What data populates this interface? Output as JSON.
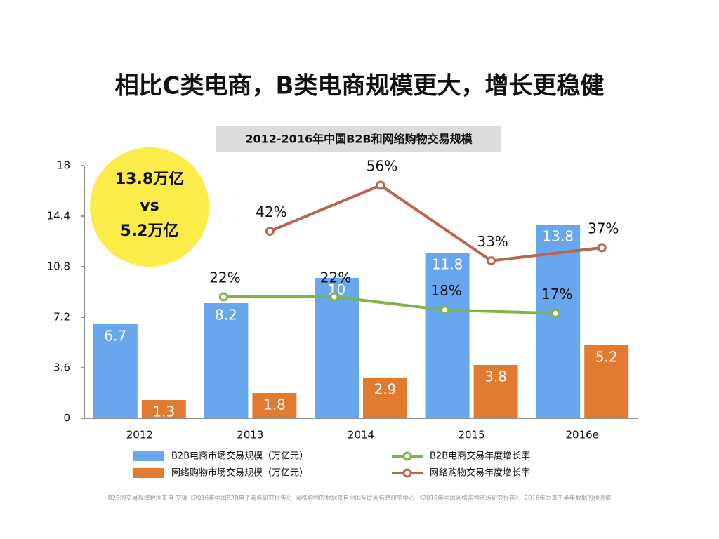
{
  "page_title": "相比C类电商，B类电商规模更大，增长更稳健",
  "callout": [
    "13.8万亿",
    "vs",
    "5.2万亿"
  ],
  "source_note": "B2B的交易规模数据来自 艾瑞《2016年中国B2B电子商务研究报告》；网络购物的数据来自中国互联网信息研究中心 《2015年中国网络购物市场研究报告》；2016年为基于半年数据的预测值",
  "chart_data": {
    "type": "combo",
    "title": "2012-2016年中国B2B和网络购物交易规模",
    "categories": [
      "2012",
      "2013",
      "2014",
      "2015",
      "2016e"
    ],
    "ylim": [
      0,
      18
    ],
    "yticks": [
      0,
      3.6,
      7.2,
      10.8,
      14.4,
      18
    ],
    "y2lim": [
      -15,
      62
    ],
    "grid": false,
    "series": [
      {
        "name": "B2B电商市场交易规模（万亿元）",
        "type": "bar",
        "color": "#68a7ee",
        "values": [
          6.7,
          8.2,
          10,
          11.8,
          13.8
        ]
      },
      {
        "name": "网络购物市场交易规模（万亿元）",
        "type": "bar",
        "color": "#e27a2f",
        "values": [
          1.3,
          1.8,
          2.9,
          3.8,
          5.2
        ]
      },
      {
        "name": "B2B电商交易年度增长率",
        "type": "line",
        "axis": "y2",
        "color": "#7cb644",
        "values": [
          null,
          22,
          22,
          18,
          17
        ],
        "value_labels": [
          null,
          "22%",
          "22%",
          "18%",
          "17%"
        ]
      },
      {
        "name": "网络购物交易年度增长率",
        "type": "line",
        "axis": "y2",
        "color": "#b8654b",
        "values": [
          null,
          42,
          56,
          33,
          37
        ],
        "value_labels": [
          null,
          "42%",
          "56%",
          "33%",
          "37%"
        ]
      }
    ]
  }
}
